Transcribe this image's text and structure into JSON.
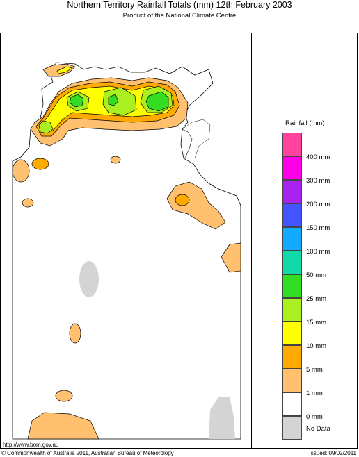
{
  "header": {
    "title": "Northern Territory Rainfall Totals (mm) 12th February 2003",
    "subtitle": "Product of the National Climate Centre"
  },
  "legend": {
    "title": "Rainfall (mm)",
    "items": [
      {
        "label": "400 mm",
        "color": "#ff44a0"
      },
      {
        "label": "300 mm",
        "color": "#ff00e6"
      },
      {
        "label": "200 mm",
        "color": "#aa22ee"
      },
      {
        "label": "150 mm",
        "color": "#4455ff"
      },
      {
        "label": "100 mm",
        "color": "#11aaff"
      },
      {
        "label": "50 mm",
        "color": "#11d9a8"
      },
      {
        "label": "25 mm",
        "color": "#33dd22"
      },
      {
        "label": "15 mm",
        "color": "#aaf020"
      },
      {
        "label": "10 mm",
        "color": "#ffff00"
      },
      {
        "label": "5 mm",
        "color": "#ffaa00"
      },
      {
        "label": "1 mm",
        "color": "#ffc070"
      },
      {
        "label": "0 mm",
        "color": "#ffffff"
      },
      {
        "label": "No Data",
        "color": "#d4d4d4"
      }
    ]
  },
  "footer": {
    "url": "http://www.bom.gov.au",
    "copyright": "© Commonwealth of Australia 2011, Australian Bureau of Meteorology",
    "issued": "Issued: 09/02/2011"
  }
}
